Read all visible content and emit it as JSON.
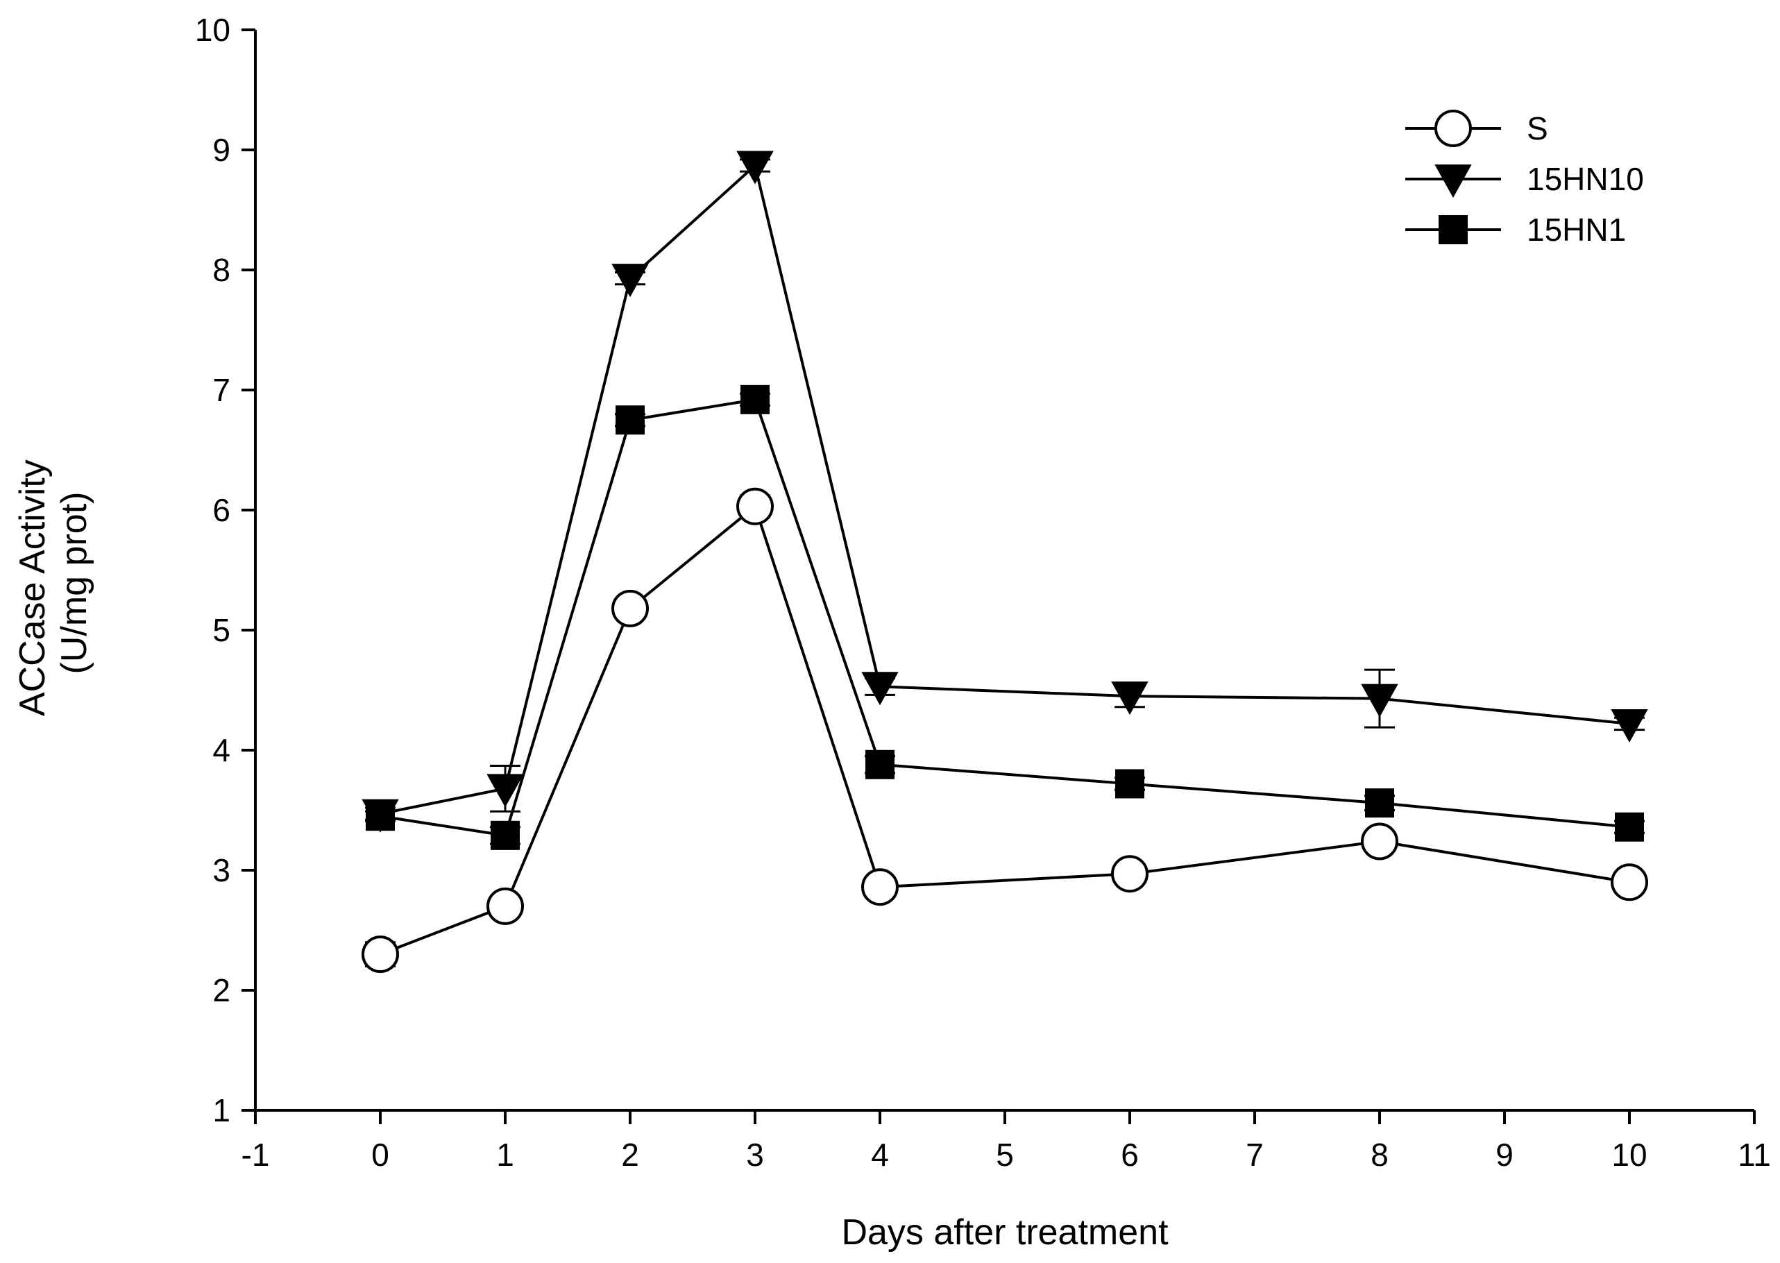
{
  "chart_data": {
    "type": "line",
    "title": "",
    "xlabel": "Days after treatment",
    "ylabel_lines": [
      "ACCase Activity",
      "(U/mg prot)"
    ],
    "xlim": [
      -1,
      11
    ],
    "ylim": [
      1,
      10
    ],
    "xticks": [
      -1,
      0,
      1,
      2,
      3,
      4,
      5,
      6,
      7,
      8,
      9,
      10,
      11
    ],
    "yticks": [
      1,
      2,
      3,
      4,
      5,
      6,
      7,
      8,
      9,
      10
    ],
    "grid": false,
    "legend_position": "top-right",
    "series": [
      {
        "name": "S",
        "marker": "circle-open",
        "x": [
          0,
          1,
          2,
          3,
          4,
          6,
          8,
          10
        ],
        "y": [
          2.3,
          2.7,
          5.18,
          6.03,
          2.86,
          2.97,
          3.24,
          2.9
        ],
        "err": [
          0.1,
          0.05,
          0.05,
          0.09,
          0.04,
          0.04,
          0.05,
          0.05
        ]
      },
      {
        "name": "15HN10",
        "marker": "triangle-down-filled",
        "x": [
          0,
          1,
          2,
          3,
          4,
          6,
          8,
          10
        ],
        "y": [
          3.47,
          3.68,
          7.93,
          8.87,
          4.53,
          4.45,
          4.43,
          4.22
        ],
        "err": [
          0.05,
          0.19,
          0.05,
          0.05,
          0.07,
          0.09,
          0.24,
          0.05
        ]
      },
      {
        "name": "15HN1",
        "marker": "square-filled",
        "x": [
          0,
          1,
          2,
          3,
          4,
          6,
          8,
          10
        ],
        "y": [
          3.45,
          3.29,
          6.75,
          6.92,
          3.88,
          3.72,
          3.56,
          3.36
        ],
        "err": [
          0.04,
          0.07,
          0.05,
          0.05,
          0.07,
          0.05,
          0.06,
          0.05
        ]
      }
    ]
  }
}
